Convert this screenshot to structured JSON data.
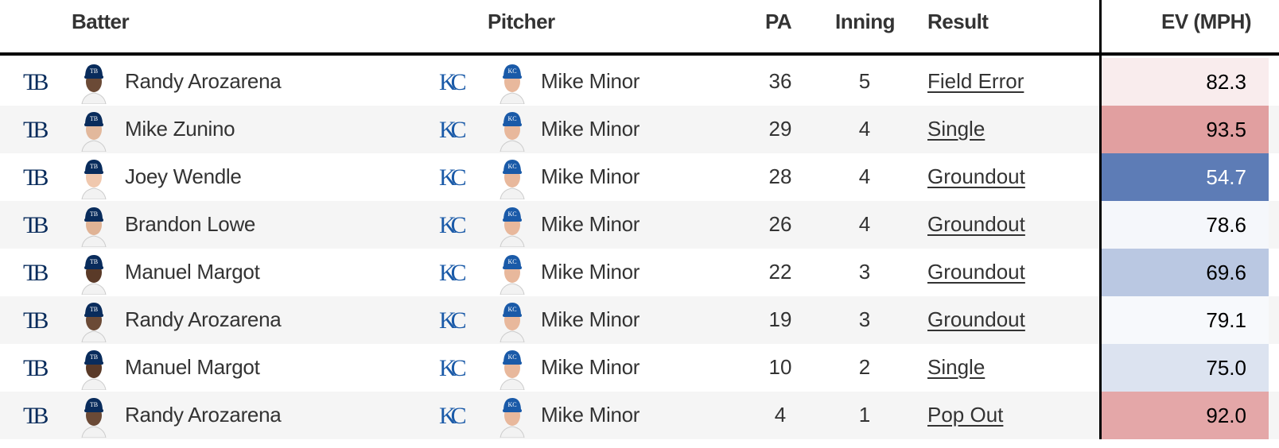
{
  "headers": {
    "batter": "Batter",
    "pitcher": "Pitcher",
    "pa": "PA",
    "inning": "Inning",
    "result": "Result",
    "ev": "EV (MPH)"
  },
  "team_logos": {
    "batter": "TB",
    "pitcher": "KC"
  },
  "colors": {
    "tb_navy": "#092c5c",
    "kc_blue": "#1a5aa8",
    "hot": "#e0a0a0",
    "cold": "#5b7bb7"
  },
  "rows": [
    {
      "batter": "Randy Arozarena",
      "pitcher": "Mike Minor",
      "pa": "36",
      "inning": "5",
      "result": "Field Error",
      "ev": "82.3",
      "ev_bg": "#f9eced",
      "ev_fg": "#000",
      "skin": "#6b4a36"
    },
    {
      "batter": "Mike Zunino",
      "pitcher": "Mike Minor",
      "pa": "29",
      "inning": "4",
      "result": "Single",
      "ev": "93.5",
      "ev_bg": "#e19fa0",
      "ev_fg": "#000",
      "skin": "#e2b89c"
    },
    {
      "batter": "Joey Wendle",
      "pitcher": "Mike Minor",
      "pa": "28",
      "inning": "4",
      "result": "Groundout",
      "ev": "54.7",
      "ev_bg": "#5d7cb6",
      "ev_fg": "#fff",
      "skin": "#f0c8ae"
    },
    {
      "batter": "Brandon Lowe",
      "pitcher": "Mike Minor",
      "pa": "26",
      "inning": "4",
      "result": "Groundout",
      "ev": "78.6",
      "ev_bg": "#f5f7fb",
      "ev_fg": "#000",
      "skin": "#e0b395"
    },
    {
      "batter": "Manuel Margot",
      "pitcher": "Mike Minor",
      "pa": "22",
      "inning": "3",
      "result": "Groundout",
      "ev": "69.6",
      "ev_bg": "#bac8e2",
      "ev_fg": "#000",
      "skin": "#5a3a28"
    },
    {
      "batter": "Randy Arozarena",
      "pitcher": "Mike Minor",
      "pa": "19",
      "inning": "3",
      "result": "Groundout",
      "ev": "79.1",
      "ev_bg": "#f7f9fc",
      "ev_fg": "#000",
      "skin": "#6b4a36"
    },
    {
      "batter": "Manuel Margot",
      "pitcher": "Mike Minor",
      "pa": "10",
      "inning": "2",
      "result": "Single",
      "ev": "75.0",
      "ev_bg": "#dce3f0",
      "ev_fg": "#000",
      "skin": "#5a3a28"
    },
    {
      "batter": "Randy Arozarena",
      "pitcher": "Mike Minor",
      "pa": "4",
      "inning": "1",
      "result": "Pop Out",
      "ev": "92.0",
      "ev_bg": "#e4a7a8",
      "ev_fg": "#000",
      "skin": "#6b4a36"
    }
  ]
}
